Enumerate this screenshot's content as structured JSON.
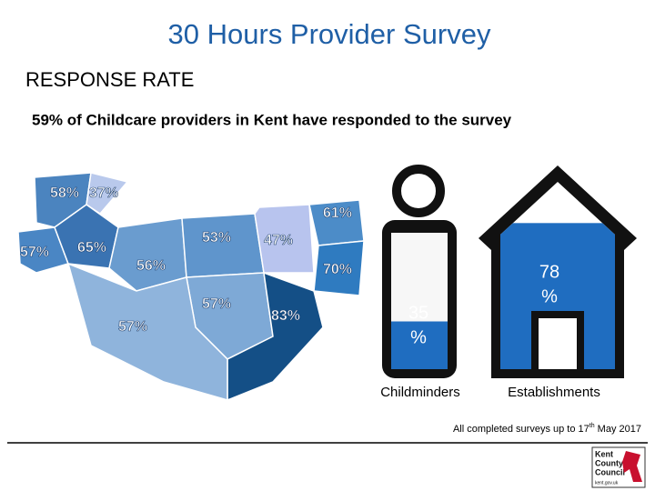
{
  "header": {
    "title": "30 Hours Provider Survey",
    "heading": "RESPONSE RATE",
    "summary": "59% of Childcare providers in Kent have responded to the survey"
  },
  "map": {
    "regions": [
      "58%",
      "37%",
      "61%",
      "57%",
      "65%",
      "53%",
      "47%",
      "56%",
      "70%",
      "57%",
      "83%",
      "57%"
    ]
  },
  "icons": [
    {
      "label": "Childminders",
      "value": 35,
      "value_lines": [
        "35",
        "%"
      ]
    },
    {
      "label": "Establishments",
      "value": 78,
      "value_lines": [
        "78",
        "%"
      ]
    }
  ],
  "footnote": {
    "text": "All completed surveys up to 17",
    "sup": "th",
    "rest": " May 2017"
  },
  "logo": {
    "lines": [
      "Kent",
      "County",
      "Council"
    ],
    "url": "kent.gov.uk"
  }
}
